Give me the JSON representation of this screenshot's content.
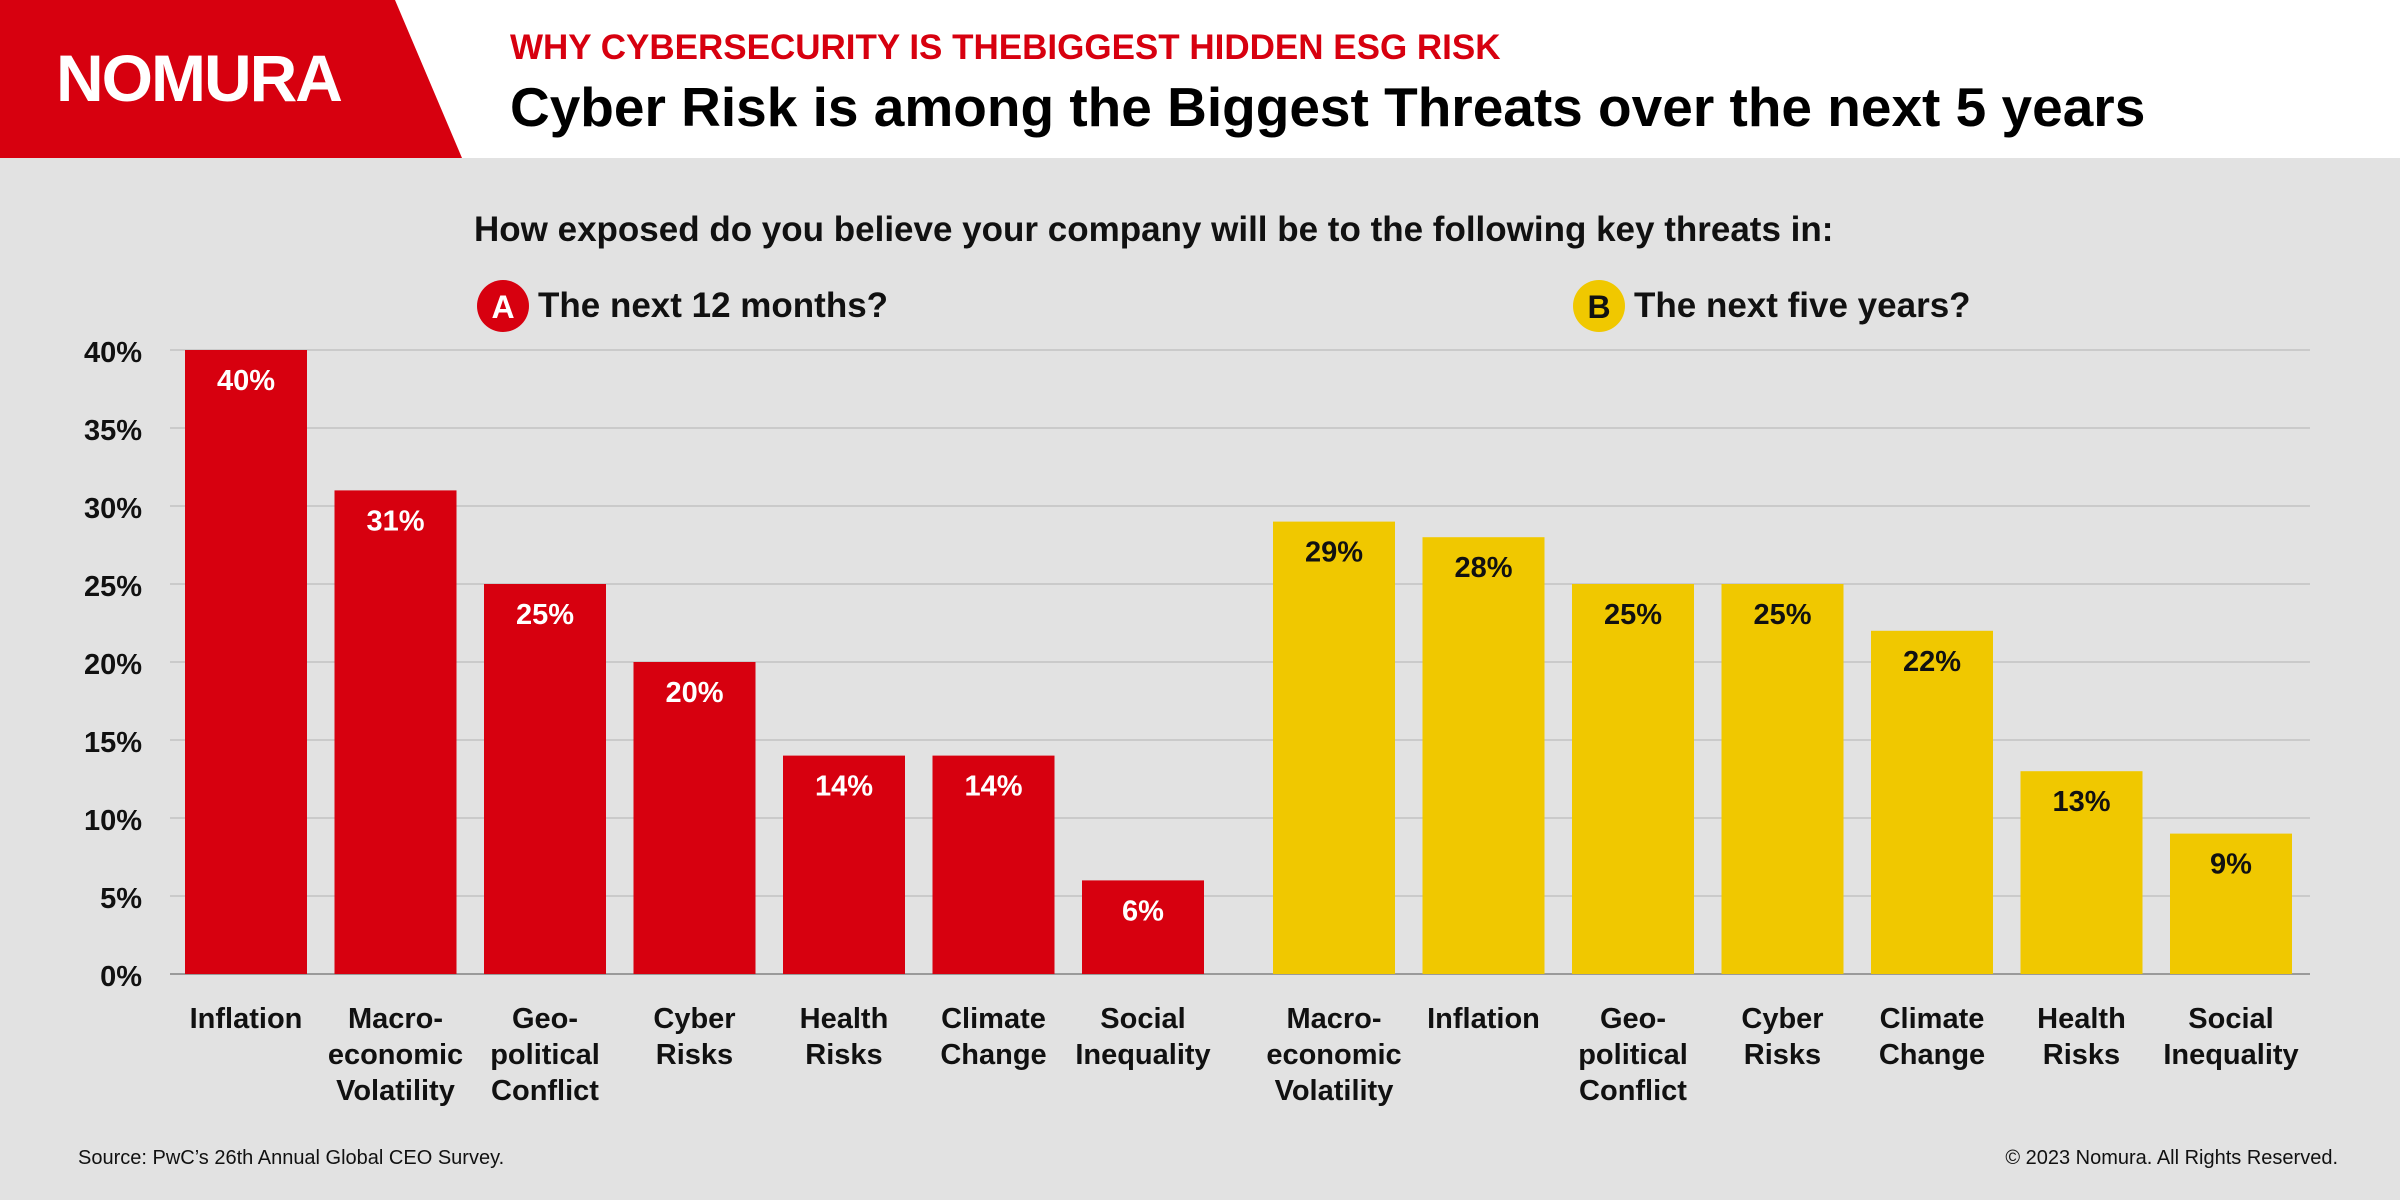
{
  "brand": {
    "logo_text": "NOMURA",
    "red": "#d7000f",
    "yellow": "#f0c800"
  },
  "header": {
    "kicker": "WHY CYBERSECURITY IS THEBIGGEST HIDDEN ESG RISK",
    "headline": "Cyber Risk is among the Biggest Threats over the next 5 years"
  },
  "question": "How exposed do you believe your company will be to the following key threats in:",
  "footer": {
    "source": "Source: PwC’s 26th Annual Global CEO Survey.",
    "copyright": "© 2023 Nomura. All Rights Reserved."
  },
  "chart_data": {
    "type": "bar",
    "ylim": [
      0,
      40
    ],
    "yticks": [
      "0%",
      "5%",
      "10%",
      "15%",
      "20%",
      "25%",
      "30%",
      "35%",
      "40%"
    ],
    "tick_values": [
      0,
      5,
      10,
      15,
      20,
      25,
      30,
      35,
      40
    ],
    "grid": true,
    "series": [
      {
        "badge": "A",
        "name": "The next 12 months?",
        "color": "#d7000f",
        "label_color": "#ffffff",
        "categories": [
          "Inflation",
          "Macro-\neconomic\nVolatility",
          "Geo-\npolitical\nConflict",
          "Cyber\nRisks",
          "Health\nRisks",
          "Climate\nChange",
          "Social\nInequality"
        ],
        "values": [
          40,
          31,
          25,
          20,
          14,
          14,
          6
        ],
        "labels": [
          "40%",
          "31%",
          "25%",
          "20%",
          "14%",
          "14%",
          "6%"
        ]
      },
      {
        "badge": "B",
        "name": "The next five years?",
        "color": "#f0c800",
        "label_color": "#111111",
        "categories": [
          "Macro-\neconomic\nVolatility",
          "Inflation",
          "Geo-\npolitical\nConflict",
          "Cyber\nRisks",
          "Climate\nChange",
          "Health\nRisks",
          "Social\nInequality"
        ],
        "values": [
          29,
          28,
          25,
          25,
          22,
          13,
          9
        ],
        "labels": [
          "29%",
          "28%",
          "25%",
          "25%",
          "22%",
          "13%",
          "9%"
        ]
      }
    ]
  }
}
